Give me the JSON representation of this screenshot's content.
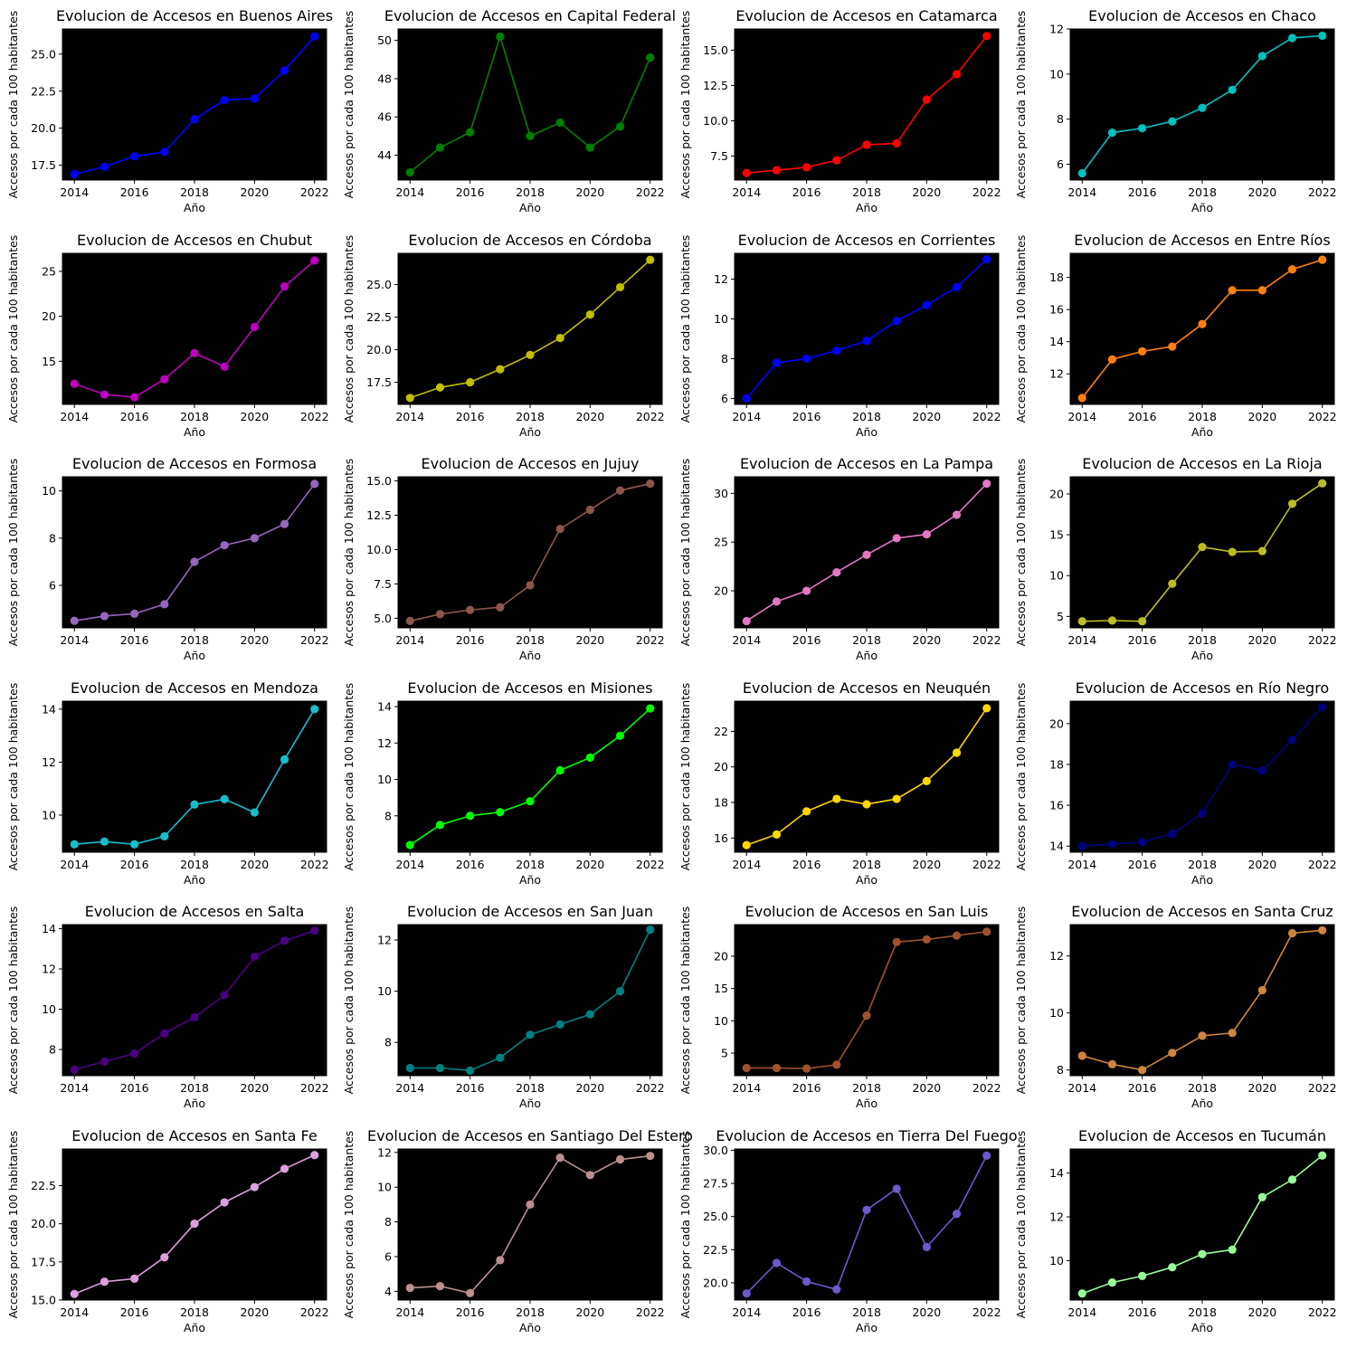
{
  "chart_data": [
    {
      "type": "line",
      "title": "Evolucion de Accesos en Buenos Aires",
      "xlabel": "Año",
      "ylabel": "Accesos por cada 100 habitantes",
      "color": "#0000ff",
      "x": [
        2014,
        2015,
        2016,
        2017,
        2018,
        2019,
        2020,
        2021,
        2022
      ],
      "values": [
        16.9,
        17.4,
        18.1,
        18.4,
        20.6,
        21.9,
        22.0,
        23.9,
        26.2
      ],
      "ylim": [
        16.5,
        26.7
      ],
      "yticks": [
        17.5,
        20.0,
        22.5,
        25.0
      ]
    },
    {
      "type": "line",
      "title": "Evolucion de Accesos en Capital Federal",
      "xlabel": "Año",
      "ylabel": "Accesos por cada 100 habitantes",
      "color": "#008000",
      "x": [
        2014,
        2015,
        2016,
        2017,
        2018,
        2019,
        2020,
        2021,
        2022
      ],
      "values": [
        43.1,
        44.4,
        45.2,
        50.2,
        45.0,
        45.7,
        44.4,
        45.5,
        49.1
      ],
      "ylim": [
        42.7,
        50.6
      ],
      "yticks": [
        44,
        46,
        48,
        50
      ]
    },
    {
      "type": "line",
      "title": "Evolucion de Accesos en Catamarca",
      "xlabel": "Año",
      "ylabel": "Accesos por cada 100 habitantes",
      "color": "#ff0000",
      "x": [
        2014,
        2015,
        2016,
        2017,
        2018,
        2019,
        2020,
        2021,
        2022
      ],
      "values": [
        6.3,
        6.5,
        6.7,
        7.2,
        8.3,
        8.4,
        11.5,
        13.3,
        16.0
      ],
      "ylim": [
        5.8,
        16.5
      ],
      "yticks": [
        7.5,
        10.0,
        12.5,
        15.0
      ]
    },
    {
      "type": "line",
      "title": "Evolucion de Accesos en Chaco",
      "xlabel": "Año",
      "ylabel": "Accesos por cada 100 habitantes",
      "color": "#00bfbf",
      "x": [
        2014,
        2015,
        2016,
        2017,
        2018,
        2019,
        2020,
        2021,
        2022
      ],
      "values": [
        5.6,
        7.4,
        7.6,
        7.9,
        8.5,
        9.3,
        10.8,
        11.6,
        11.7
      ],
      "ylim": [
        5.3,
        12.0
      ],
      "yticks": [
        6,
        8,
        10,
        12
      ]
    },
    {
      "type": "line",
      "title": "Evolucion de Accesos en Chubut",
      "xlabel": "Año",
      "ylabel": "Accesos por cada 100 habitantes",
      "color": "#bf00bf",
      "x": [
        2014,
        2015,
        2016,
        2017,
        2018,
        2019,
        2020,
        2021,
        2022
      ],
      "values": [
        12.5,
        11.3,
        11.0,
        13.0,
        15.9,
        14.4,
        18.8,
        23.3,
        26.2
      ],
      "ylim": [
        10.2,
        27.0
      ],
      "yticks": [
        15,
        20,
        25
      ]
    },
    {
      "type": "line",
      "title": "Evolucion de Accesos en Córdoba",
      "xlabel": "Año",
      "ylabel": "Accesos por cada 100 habitantes",
      "color": "#bfbf00",
      "x": [
        2014,
        2015,
        2016,
        2017,
        2018,
        2019,
        2020,
        2021,
        2022
      ],
      "values": [
        16.3,
        17.1,
        17.5,
        18.5,
        19.6,
        20.9,
        22.7,
        24.8,
        26.9
      ],
      "ylim": [
        15.8,
        27.4
      ],
      "yticks": [
        17.5,
        20.0,
        22.5,
        25.0
      ]
    },
    {
      "type": "line",
      "title": "Evolucion de Accesos en Corrientes",
      "xlabel": "Año",
      "ylabel": "Accesos por cada 100 habitantes",
      "color": "#0000ff",
      "x": [
        2014,
        2015,
        2016,
        2017,
        2018,
        2019,
        2020,
        2021,
        2022
      ],
      "values": [
        6.0,
        7.8,
        8.0,
        8.4,
        8.9,
        9.9,
        10.7,
        11.6,
        13.0
      ],
      "ylim": [
        5.7,
        13.3
      ],
      "yticks": [
        6,
        8,
        10,
        12
      ]
    },
    {
      "type": "line",
      "title": "Evolucion de Accesos en Entre Ríos",
      "xlabel": "Año",
      "ylabel": "Accesos por cada 100 habitantes",
      "color": "#ff7f0e",
      "x": [
        2014,
        2015,
        2016,
        2017,
        2018,
        2019,
        2020,
        2021,
        2022
      ],
      "values": [
        10.5,
        12.9,
        13.4,
        13.7,
        15.1,
        17.2,
        17.2,
        18.5,
        19.1
      ],
      "ylim": [
        10.1,
        19.5
      ],
      "yticks": [
        12,
        14,
        16,
        18
      ]
    },
    {
      "type": "line",
      "title": "Evolucion de Accesos en Formosa",
      "xlabel": "Año",
      "ylabel": "Accesos por cada 100 habitantes",
      "color": "#9467bd",
      "x": [
        2014,
        2015,
        2016,
        2017,
        2018,
        2019,
        2020,
        2021,
        2022
      ],
      "values": [
        4.5,
        4.7,
        4.8,
        5.2,
        7.0,
        7.7,
        8.0,
        8.6,
        10.3
      ],
      "ylim": [
        4.2,
        10.6
      ],
      "yticks": [
        6,
        8,
        10
      ]
    },
    {
      "type": "line",
      "title": "Evolucion de Accesos en Jujuy",
      "xlabel": "Año",
      "ylabel": "Accesos por cada 100 habitantes",
      "color": "#8c564b",
      "x": [
        2014,
        2015,
        2016,
        2017,
        2018,
        2019,
        2020,
        2021,
        2022
      ],
      "values": [
        4.8,
        5.3,
        5.6,
        5.8,
        7.4,
        11.5,
        12.9,
        14.3,
        14.8
      ],
      "ylim": [
        4.3,
        15.3
      ],
      "yticks": [
        5.0,
        7.5,
        10.0,
        12.5,
        15.0
      ]
    },
    {
      "type": "line",
      "title": "Evolucion de Accesos en La Pampa",
      "xlabel": "Año",
      "ylabel": "Accesos por cada 100 habitantes",
      "color": "#e377c2",
      "x": [
        2014,
        2015,
        2016,
        2017,
        2018,
        2019,
        2020,
        2021,
        2022
      ],
      "values": [
        16.9,
        18.9,
        20.0,
        21.9,
        23.7,
        25.4,
        25.8,
        27.8,
        31.0
      ],
      "ylim": [
        16.2,
        31.7
      ],
      "yticks": [
        20,
        25,
        30
      ]
    },
    {
      "type": "line",
      "title": "Evolucion de Accesos en La Rioja",
      "xlabel": "Año",
      "ylabel": "Accesos por cada 100 habitantes",
      "color": "#bcbd22",
      "x": [
        2014,
        2015,
        2016,
        2017,
        2018,
        2019,
        2020,
        2021,
        2022
      ],
      "values": [
        4.4,
        4.5,
        4.4,
        9.0,
        13.5,
        12.9,
        13.0,
        18.8,
        21.3
      ],
      "ylim": [
        3.6,
        22.1
      ],
      "yticks": [
        5,
        10,
        15,
        20
      ]
    },
    {
      "type": "line",
      "title": "Evolucion de Accesos en Mendoza",
      "xlabel": "Año",
      "ylabel": "Accesos por cada 100 habitantes",
      "color": "#17becf",
      "x": [
        2014,
        2015,
        2016,
        2017,
        2018,
        2019,
        2020,
        2021,
        2022
      ],
      "values": [
        8.9,
        9.0,
        8.9,
        9.2,
        10.4,
        10.6,
        10.1,
        12.1,
        14.0
      ],
      "ylim": [
        8.6,
        14.3
      ],
      "yticks": [
        10,
        12,
        14
      ]
    },
    {
      "type": "line",
      "title": "Evolucion de Accesos en Misiones",
      "xlabel": "Año",
      "ylabel": "Accesos por cada 100 habitantes",
      "color": "#00ff00",
      "x": [
        2014,
        2015,
        2016,
        2017,
        2018,
        2019,
        2020,
        2021,
        2022
      ],
      "values": [
        6.4,
        7.5,
        8.0,
        8.2,
        8.8,
        10.5,
        11.2,
        12.4,
        13.9
      ],
      "ylim": [
        6.0,
        14.3
      ],
      "yticks": [
        8,
        10,
        12,
        14
      ]
    },
    {
      "type": "line",
      "title": "Evolucion de Accesos en Neuquén",
      "xlabel": "Año",
      "ylabel": "Accesos por cada 100 habitantes",
      "color": "#ffd700",
      "x": [
        2014,
        2015,
        2016,
        2017,
        2018,
        2019,
        2020,
        2021,
        2022
      ],
      "values": [
        15.6,
        16.2,
        17.5,
        18.2,
        17.9,
        18.2,
        19.2,
        20.8,
        23.3
      ],
      "ylim": [
        15.2,
        23.7
      ],
      "yticks": [
        16,
        18,
        20,
        22
      ]
    },
    {
      "type": "line",
      "title": "Evolucion de Accesos en Río Negro",
      "xlabel": "Año",
      "ylabel": "Accesos por cada 100 habitantes",
      "color": "#000080",
      "x": [
        2014,
        2015,
        2016,
        2017,
        2018,
        2019,
        2020,
        2021,
        2022
      ],
      "values": [
        14.0,
        14.1,
        14.2,
        14.6,
        15.6,
        18.0,
        17.7,
        19.2,
        20.8
      ],
      "ylim": [
        13.7,
        21.1
      ],
      "yticks": [
        14,
        16,
        18,
        20
      ]
    },
    {
      "type": "line",
      "title": "Evolucion de Accesos en Salta",
      "xlabel": "Año",
      "ylabel": "Accesos por cada 100 habitantes",
      "color": "#4b0082",
      "x": [
        2014,
        2015,
        2016,
        2017,
        2018,
        2019,
        2020,
        2021,
        2022
      ],
      "values": [
        7.0,
        7.4,
        7.8,
        8.8,
        9.6,
        10.7,
        12.6,
        13.4,
        13.9
      ],
      "ylim": [
        6.7,
        14.2
      ],
      "yticks": [
        8,
        10,
        12,
        14
      ]
    },
    {
      "type": "line",
      "title": "Evolucion de Accesos en San Juan",
      "xlabel": "Año",
      "ylabel": "Accesos por cada 100 habitantes",
      "color": "#008080",
      "x": [
        2014,
        2015,
        2016,
        2017,
        2018,
        2019,
        2020,
        2021,
        2022
      ],
      "values": [
        7.0,
        7.0,
        6.9,
        7.4,
        8.3,
        8.7,
        9.1,
        10.0,
        12.4
      ],
      "ylim": [
        6.7,
        12.6
      ],
      "yticks": [
        8,
        10,
        12
      ]
    },
    {
      "type": "line",
      "title": "Evolucion de Accesos en San Luis",
      "xlabel": "Año",
      "ylabel": "Accesos por cada 100 habitantes",
      "color": "#a0522d",
      "x": [
        2014,
        2015,
        2016,
        2017,
        2018,
        2019,
        2020,
        2021,
        2022
      ],
      "values": [
        2.7,
        2.7,
        2.6,
        3.2,
        10.8,
        22.2,
        22.6,
        23.2,
        23.8
      ],
      "ylim": [
        1.5,
        24.9
      ],
      "yticks": [
        5,
        10,
        15,
        20
      ]
    },
    {
      "type": "line",
      "title": "Evolucion de Accesos en Santa Cruz",
      "xlabel": "Año",
      "ylabel": "Accesos por cada 100 habitantes",
      "color": "#cd853f",
      "x": [
        2014,
        2015,
        2016,
        2017,
        2018,
        2019,
        2020,
        2021,
        2022
      ],
      "values": [
        8.5,
        8.2,
        8.0,
        8.6,
        9.2,
        9.3,
        10.8,
        12.8,
        12.9
      ],
      "ylim": [
        7.8,
        13.1
      ],
      "yticks": [
        8,
        10,
        12
      ]
    },
    {
      "type": "line",
      "title": "Evolucion de Accesos en Santa Fe",
      "xlabel": "Año",
      "ylabel": "Accesos por cada 100 habitantes",
      "color": "#dda0dd",
      "x": [
        2014,
        2015,
        2016,
        2017,
        2018,
        2019,
        2020,
        2021,
        2022
      ],
      "values": [
        15.4,
        16.2,
        16.4,
        17.8,
        20.0,
        21.4,
        22.4,
        23.6,
        24.5
      ],
      "ylim": [
        15.0,
        24.9
      ],
      "yticks": [
        15.0,
        17.5,
        20.0,
        22.5
      ]
    },
    {
      "type": "line",
      "title": "Evolucion de Accesos en Santiago Del Estero",
      "xlabel": "Año",
      "ylabel": "Accesos por cada 100 habitantes",
      "color": "#bc8f8f",
      "x": [
        2014,
        2015,
        2016,
        2017,
        2018,
        2019,
        2020,
        2021,
        2022
      ],
      "values": [
        4.2,
        4.3,
        3.9,
        5.8,
        9.0,
        11.7,
        10.7,
        11.6,
        11.8
      ],
      "ylim": [
        3.5,
        12.2
      ],
      "yticks": [
        4,
        6,
        8,
        10,
        12
      ]
    },
    {
      "type": "line",
      "title": "Evolucion de Accesos en Tierra Del Fuego",
      "xlabel": "Año",
      "ylabel": "Accesos por cada 100 habitantes",
      "color": "#6a5acd",
      "x": [
        2014,
        2015,
        2016,
        2017,
        2018,
        2019,
        2020,
        2021,
        2022
      ],
      "values": [
        19.2,
        21.5,
        20.1,
        19.5,
        25.5,
        27.1,
        22.7,
        25.2,
        29.6
      ],
      "ylim": [
        18.7,
        30.1
      ],
      "yticks": [
        20.0,
        22.5,
        25.0,
        27.5,
        30.0
      ]
    },
    {
      "type": "line",
      "title": "Evolucion de Accesos en Tucumán",
      "xlabel": "Año",
      "ylabel": "Accesos por cada 100 habitantes",
      "color": "#98fb98",
      "x": [
        2014,
        2015,
        2016,
        2017,
        2018,
        2019,
        2020,
        2021,
        2022
      ],
      "values": [
        8.5,
        9.0,
        9.3,
        9.7,
        10.3,
        10.5,
        12.9,
        13.7,
        14.8
      ],
      "ylim": [
        8.2,
        15.1
      ],
      "yticks": [
        10,
        12,
        14
      ]
    }
  ]
}
